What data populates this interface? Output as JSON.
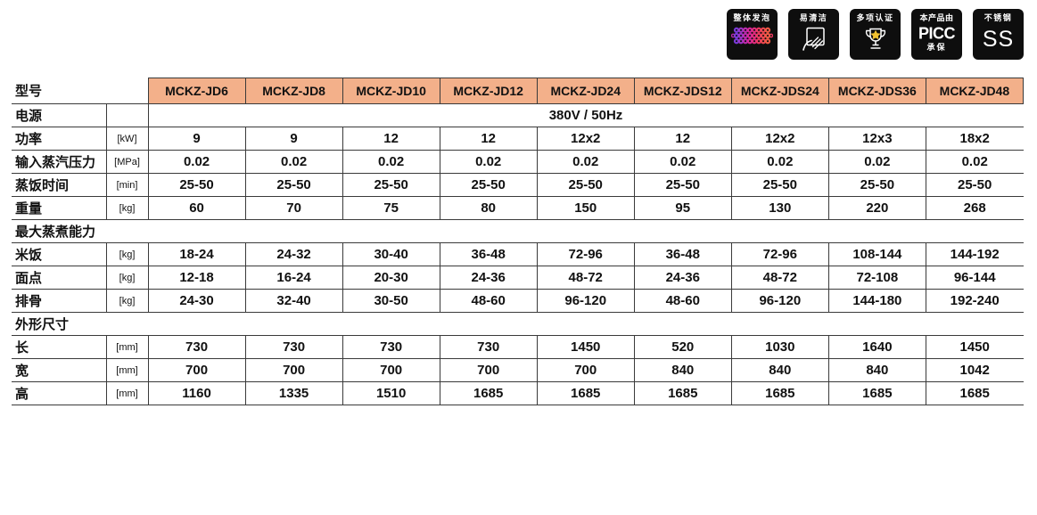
{
  "colors": {
    "header_bg": "#f3b08a",
    "border": "#3a3a3a",
    "badge_bg": "#0e0e0e",
    "star": "#f2c230"
  },
  "badges": [
    {
      "label": "整体发泡",
      "icon": "foam-dots-icon"
    },
    {
      "label": "易清洁",
      "icon": "wipe-clean-icon"
    },
    {
      "label": "多项认证",
      "icon": "trophy-icon"
    },
    {
      "label_top": "本产品由",
      "brand": "PICC",
      "label_bottom": "承保",
      "icon": "picc-logo"
    },
    {
      "label": "不锈钢",
      "text": "SS",
      "icon": "stainless-steel-mark"
    }
  ],
  "table": {
    "model_row_label": "型号",
    "models": [
      "MCKZ-JD6",
      "MCKZ-JD8",
      "MCKZ-JD10",
      "MCKZ-JD12",
      "MCKZ-JD24",
      "MCKZ-JDS12",
      "MCKZ-JDS24",
      "MCKZ-JDS36",
      "MCKZ-JD48"
    ],
    "rows": [
      {
        "type": "span",
        "label": "电源",
        "unit": "",
        "value": "380V / 50Hz"
      },
      {
        "type": "data",
        "label": "功率",
        "unit": "[kW]",
        "values": [
          "9",
          "9",
          "12",
          "12",
          "12x2",
          "12",
          "12x2",
          "12x3",
          "18x2"
        ]
      },
      {
        "type": "data",
        "label": "输入蒸汽压力",
        "unit": "[MPa]",
        "values": [
          "0.02",
          "0.02",
          "0.02",
          "0.02",
          "0.02",
          "0.02",
          "0.02",
          "0.02",
          "0.02"
        ]
      },
      {
        "type": "data",
        "label": "蒸饭时间",
        "unit": "[min]",
        "values": [
          "25-50",
          "25-50",
          "25-50",
          "25-50",
          "25-50",
          "25-50",
          "25-50",
          "25-50",
          "25-50"
        ]
      },
      {
        "type": "data",
        "label": "重量",
        "unit": "[kg]",
        "values": [
          "60",
          "70",
          "75",
          "80",
          "150",
          "95",
          "130",
          "220",
          "268"
        ]
      },
      {
        "type": "section",
        "label": "最大蒸煮能力"
      },
      {
        "type": "data",
        "label": "米饭",
        "unit": "[kg]",
        "values": [
          "18-24",
          "24-32",
          "30-40",
          "36-48",
          "72-96",
          "36-48",
          "72-96",
          "108-144",
          "144-192"
        ]
      },
      {
        "type": "data",
        "label": "面点",
        "unit": "[kg]",
        "values": [
          "12-18",
          "16-24",
          "20-30",
          "24-36",
          "48-72",
          "24-36",
          "48-72",
          "72-108",
          "96-144"
        ]
      },
      {
        "type": "data",
        "label": "排骨",
        "unit": "[kg]",
        "values": [
          "24-30",
          "32-40",
          "30-50",
          "48-60",
          "96-120",
          "48-60",
          "96-120",
          "144-180",
          "192-240"
        ]
      },
      {
        "type": "section",
        "label": "外形尺寸"
      },
      {
        "type": "data",
        "label": "长",
        "unit": "[mm]",
        "values": [
          "730",
          "730",
          "730",
          "730",
          "1450",
          "520",
          "1030",
          "1640",
          "1450"
        ]
      },
      {
        "type": "data",
        "label": "宽",
        "unit": "[mm]",
        "values": [
          "700",
          "700",
          "700",
          "700",
          "700",
          "840",
          "840",
          "840",
          "1042"
        ]
      },
      {
        "type": "data",
        "label": "高",
        "unit": "[mm]",
        "values": [
          "1160",
          "1335",
          "1510",
          "1685",
          "1685",
          "1685",
          "1685",
          "1685",
          "1685"
        ]
      }
    ]
  }
}
